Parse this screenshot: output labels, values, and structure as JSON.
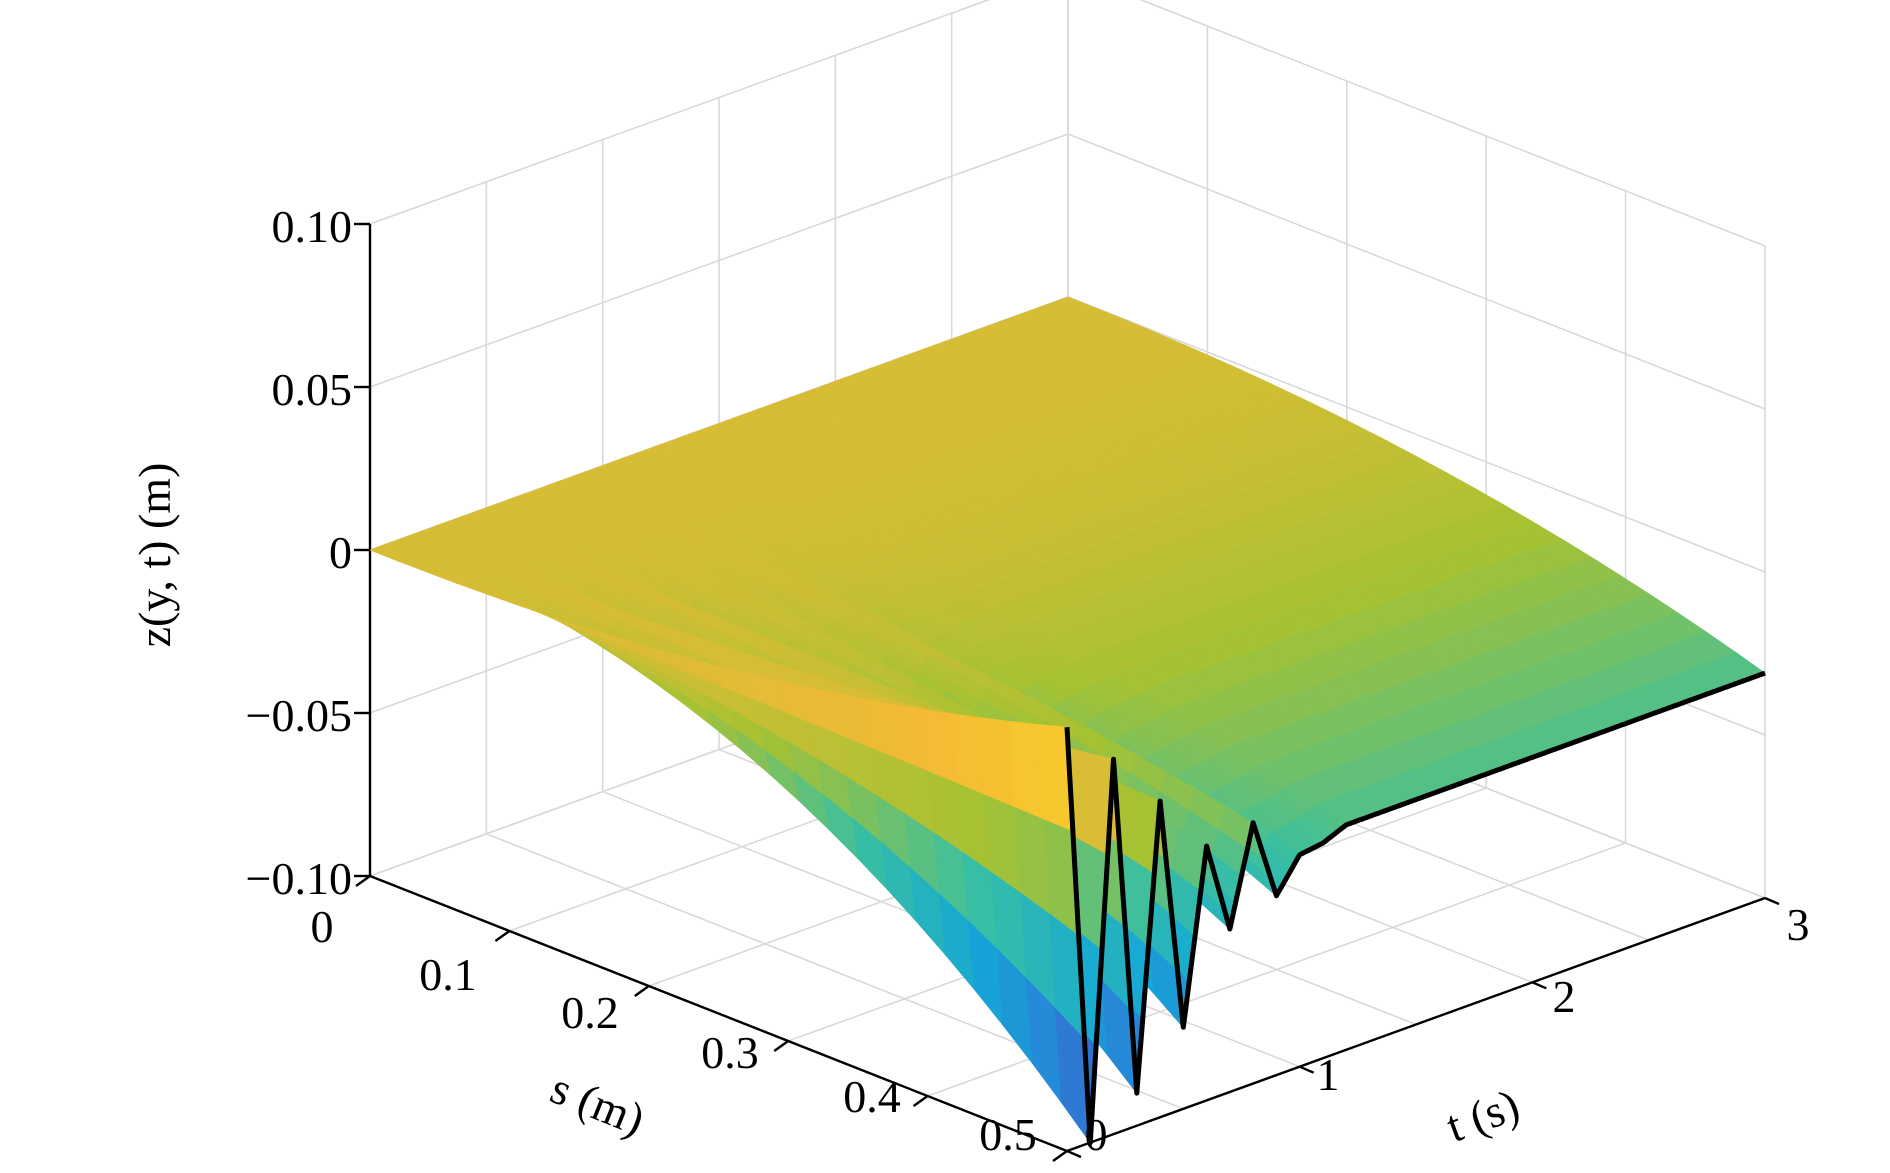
{
  "chart_data": {
    "type": "surface3d",
    "title": "",
    "xlabel": "s (m)",
    "ylabel": "t (s)",
    "zlabel": "z(y, t) (m)",
    "xlim": [
      0,
      0.5
    ],
    "ylim": [
      0,
      3
    ],
    "zlim": [
      -0.1,
      0.1
    ],
    "x_ticks": [
      "0",
      "0.1",
      "0.2",
      "0.3",
      "0.4",
      "0.5"
    ],
    "y_ticks": [
      "0",
      "1",
      "2",
      "3"
    ],
    "z_ticks": [
      "0.10",
      "0.05",
      "0",
      "−0.05",
      "−0.10"
    ],
    "grid": true,
    "colormap": "parula",
    "edge_series": {
      "name": "",
      "x_value": 0.5,
      "line_color": "#000000",
      "t": [
        0.0,
        0.1,
        0.2,
        0.3,
        0.4,
        0.5,
        0.6,
        0.7,
        0.8,
        0.9,
        1.0,
        1.1,
        1.2,
        1.3,
        1.5,
        1.8,
        2.1,
        2.4,
        2.7,
        3.0
      ],
      "z": [
        0.03,
        -0.1,
        0.015,
        -0.09,
        -0.003,
        -0.075,
        -0.022,
        -0.05,
        -0.02,
        -0.045,
        -0.035,
        -0.034,
        -0.031,
        -0.031,
        -0.031,
        -0.031,
        -0.031,
        -0.031,
        -0.031,
        -0.031
      ]
    }
  }
}
